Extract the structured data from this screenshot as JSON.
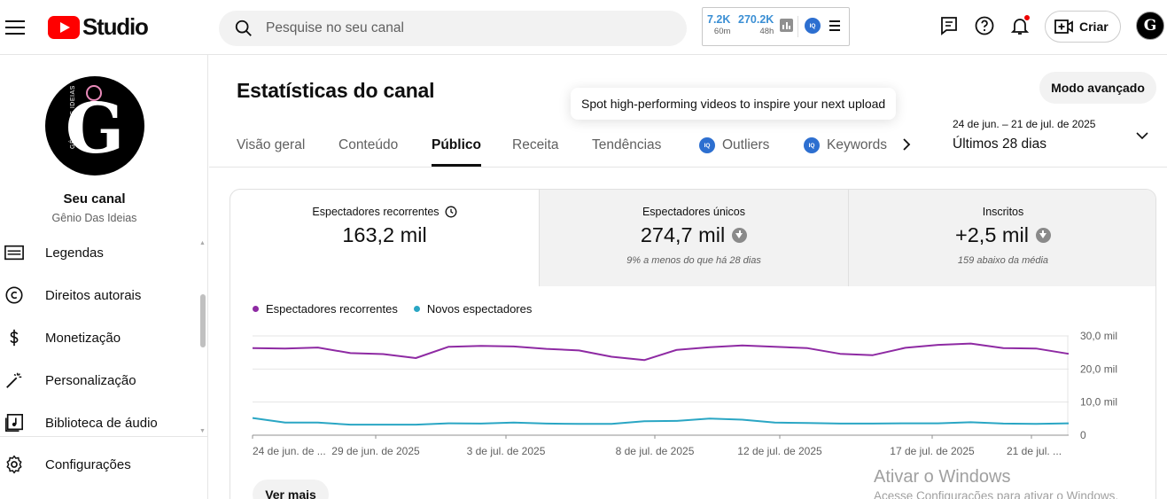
{
  "app": {
    "logo_text": "Studio"
  },
  "search": {
    "placeholder": "Pesquise no seu canal"
  },
  "extension_widget": {
    "stat1_value": "7.2K",
    "stat1_sub": "60m",
    "stat2_value": "270.2K",
    "stat2_sub": "48h",
    "badge_text": "IQ"
  },
  "header": {
    "create_label": "Criar",
    "avatar_letter": "G"
  },
  "sidebar": {
    "channel_name": "Seu canal",
    "channel_handle": "Gênio Das Ideias",
    "avatar_text": "GÊNIO DAS IDEIAS",
    "avatar_letter": "G",
    "items": [
      {
        "label": "Legendas",
        "icon": "subtitles-icon"
      },
      {
        "label": "Direitos autorais",
        "icon": "copyright-icon"
      },
      {
        "label": "Monetização",
        "icon": "dollar-icon"
      },
      {
        "label": "Personalização",
        "icon": "magic-wand-icon"
      },
      {
        "label": "Biblioteca de áudio",
        "icon": "audio-library-icon"
      }
    ],
    "settings_label": "Configurações"
  },
  "main": {
    "title": "Estatísticas do canal",
    "tooltip": "Spot high-performing videos to inspire your next upload",
    "advanced_mode_label": "Modo avançado",
    "tabs": [
      {
        "label": "Visão geral",
        "active": false
      },
      {
        "label": "Conteúdo",
        "active": false
      },
      {
        "label": "Público",
        "active": true
      },
      {
        "label": "Receita",
        "active": false
      },
      {
        "label": "Tendências",
        "active": false
      },
      {
        "label": "Outliers",
        "active": false,
        "badge": "IQ"
      },
      {
        "label": "Keywords",
        "active": false,
        "badge": "IQ"
      }
    ],
    "date_range": {
      "range": "24 de jun. – 21 de jul. de 2025",
      "label": "Últimos 28 dias"
    }
  },
  "metrics": [
    {
      "label": "Espectadores recorrentes",
      "value": "163,2 mil",
      "note": ""
    },
    {
      "label": "Espectadores únicos",
      "value": "274,7 mil",
      "note": "9% a menos do que há 28 dias"
    },
    {
      "label": "Inscritos",
      "value": "+2,5 mil",
      "note": "159 abaixo da média"
    }
  ],
  "chart_data": {
    "type": "line",
    "x_tick_labels": [
      "24 de jun. de ...",
      "29 de jun. de 2025",
      "3 de jul. de 2025",
      "8 de jul. de 2025",
      "12 de jul. de 2025",
      "17 de jul. de 2025",
      "21 de jul. ..."
    ],
    "y_tick_labels": [
      "30,0 mil",
      "20,0 mil",
      "10,0 mil",
      "0"
    ],
    "ylim": [
      0,
      30000
    ],
    "series": [
      {
        "name": "Espectadores recorrentes",
        "color": "#8e2aa3",
        "values": [
          26300,
          26200,
          26500,
          24800,
          24500,
          23300,
          26700,
          27000,
          26800,
          26100,
          25600,
          23700,
          22700,
          25800,
          26600,
          27100,
          26700,
          26300,
          24600,
          24200,
          26400,
          27300,
          27700,
          26300,
          26200,
          24600
        ]
      },
      {
        "name": "Novos espectadores",
        "color": "#2aa6c4",
        "values": [
          5200,
          3800,
          3800,
          3200,
          3200,
          3200,
          3600,
          3500,
          3800,
          3500,
          3400,
          3400,
          4200,
          4300,
          5000,
          4700,
          3800,
          3700,
          3500,
          3500,
          3600,
          3600,
          3900,
          3500,
          3400,
          3600
        ]
      }
    ],
    "grid": true,
    "shaded_last_period": true,
    "legend_position": "top-left"
  },
  "actions": {
    "see_more_label": "Ver mais"
  },
  "watermark": {
    "title": "Ativar o Windows",
    "subtitle": "Acesse Configurações para ativar o Windows."
  }
}
